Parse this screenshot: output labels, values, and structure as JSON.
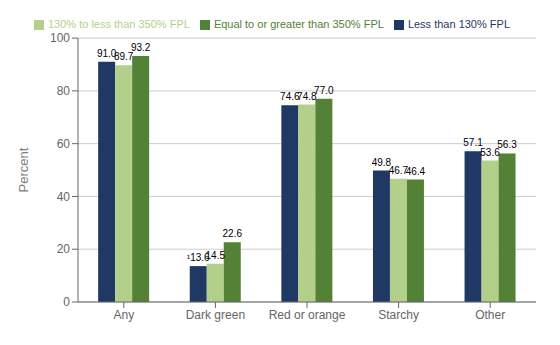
{
  "chart_data": {
    "type": "bar",
    "categories": [
      "Any",
      "Dark green",
      "Red or orange",
      "Starchy",
      "Other"
    ],
    "series": [
      {
        "name": "Less than 130% FPL",
        "color": "#1f3864",
        "values": [
          91.0,
          13.6,
          74.6,
          49.8,
          57.1
        ],
        "value_labels": [
          "91.0",
          "¹13.6",
          "74.6",
          "49.8",
          "57.1"
        ]
      },
      {
        "name": "130% to less than 350% FPL",
        "color": "#b3d08a",
        "values": [
          89.7,
          14.5,
          74.8,
          46.7,
          53.6
        ],
        "value_labels": [
          "89.7",
          "14.5",
          "74.8",
          "46.7",
          "53.6"
        ]
      },
      {
        "name": "Equal to or greater than 350% FPL",
        "color": "#538135",
        "values": [
          93.2,
          22.6,
          77.0,
          46.4,
          56.3
        ],
        "value_labels": [
          "93.2",
          "22.6",
          "77.0",
          "46.4",
          "56.3"
        ]
      }
    ],
    "y_label": "Percent",
    "ylim": [
      0,
      100
    ],
    "yticks": [
      0,
      20,
      40,
      60,
      80,
      100
    ],
    "grid": true,
    "legend": "top",
    "data_labels": true
  }
}
